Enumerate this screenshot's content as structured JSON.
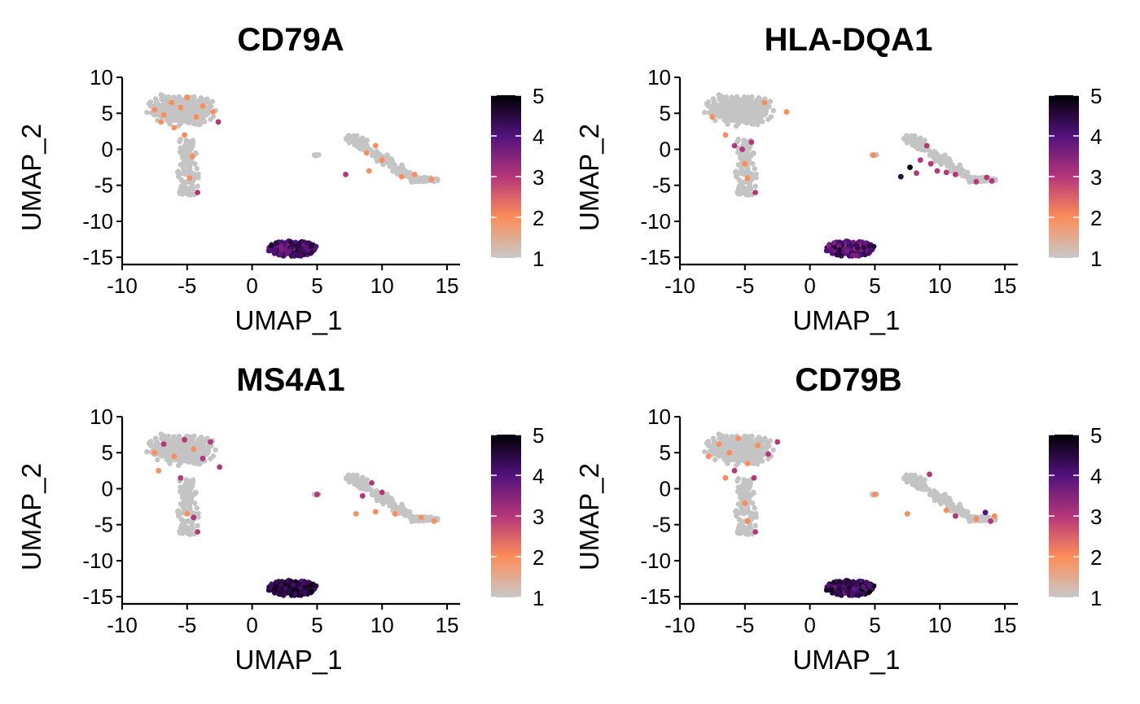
{
  "chart_data": [
    {
      "type": "scatter",
      "title": "CD79A",
      "xlabel": "UMAP_1",
      "ylabel": "UMAP_2",
      "xlim": [
        -10,
        16
      ],
      "ylim": [
        -16,
        10
      ],
      "xticks": [
        -10,
        -5,
        0,
        5,
        10,
        15
      ],
      "yticks": [
        10,
        5,
        0,
        -5,
        -10,
        -15
      ],
      "colorbar": {
        "min": 1,
        "max": 5,
        "ticks": [
          5,
          4,
          3,
          2,
          1
        ]
      },
      "highlights": [
        {
          "x": -7.5,
          "y": 5.5,
          "v": 2
        },
        {
          "x": -6.8,
          "y": 4.8,
          "v": 2
        },
        {
          "x": -6.2,
          "y": 6.5,
          "v": 2
        },
        {
          "x": -5.5,
          "y": 5.8,
          "v": 2
        },
        {
          "x": -5.0,
          "y": 7.2,
          "v": 2
        },
        {
          "x": -4.3,
          "y": 4.5,
          "v": 2
        },
        {
          "x": -3.8,
          "y": 6.0,
          "v": 2
        },
        {
          "x": -3.0,
          "y": 5.2,
          "v": 2
        },
        {
          "x": -2.6,
          "y": 3.8,
          "v": 3
        },
        {
          "x": -6.0,
          "y": 3.0,
          "v": 2
        },
        {
          "x": -5.2,
          "y": 2.0,
          "v": 2
        },
        {
          "x": -4.6,
          "y": -1.0,
          "v": 2
        },
        {
          "x": -4.8,
          "y": -4.0,
          "v": 2
        },
        {
          "x": -4.2,
          "y": -6.0,
          "v": 3
        },
        {
          "x": -7.0,
          "y": 3.8,
          "v": 2
        },
        {
          "x": 8.8,
          "y": -0.5,
          "v": 2
        },
        {
          "x": 9.5,
          "y": 0.5,
          "v": 2
        },
        {
          "x": 10.0,
          "y": -1.5,
          "v": 2
        },
        {
          "x": 9.0,
          "y": -3.0,
          "v": 2
        },
        {
          "x": 7.2,
          "y": -3.5,
          "v": 3
        },
        {
          "x": 11.5,
          "y": -3.8,
          "v": 2
        },
        {
          "x": 13.8,
          "y": -4.2,
          "v": 2
        },
        {
          "x": 12.5,
          "y": -3.5,
          "v": 2
        }
      ],
      "cluster_b_mean": 4.2
    },
    {
      "type": "scatter",
      "title": "HLA-DQA1",
      "xlabel": "UMAP_1",
      "ylabel": "UMAP_2",
      "xlim": [
        -10,
        16
      ],
      "ylim": [
        -16,
        10
      ],
      "xticks": [
        -10,
        -5,
        0,
        5,
        10,
        15
      ],
      "yticks": [
        10,
        5,
        0,
        -5,
        -10,
        -15
      ],
      "colorbar": {
        "min": 1,
        "max": 5,
        "ticks": [
          5,
          4,
          3,
          2,
          1
        ]
      },
      "highlights": [
        {
          "x": -7.5,
          "y": 4.5,
          "v": 2
        },
        {
          "x": -6.5,
          "y": 2.0,
          "v": 2
        },
        {
          "x": -5.8,
          "y": 0.5,
          "v": 3
        },
        {
          "x": -5.2,
          "y": 0.0,
          "v": 3
        },
        {
          "x": -4.5,
          "y": 1.0,
          "v": 3
        },
        {
          "x": -5.0,
          "y": -2.0,
          "v": 2
        },
        {
          "x": -4.8,
          "y": -4.0,
          "v": 2
        },
        {
          "x": -4.2,
          "y": -6.0,
          "v": 3
        },
        {
          "x": -3.5,
          "y": 6.5,
          "v": 2
        },
        {
          "x": -1.8,
          "y": 5.2,
          "v": 2
        },
        {
          "x": 4.9,
          "y": -0.8,
          "v": 2
        },
        {
          "x": 7.0,
          "y": -3.8,
          "v": 4.5
        },
        {
          "x": 7.7,
          "y": -2.5,
          "v": 5
        },
        {
          "x": 8.5,
          "y": -1.5,
          "v": 3
        },
        {
          "x": 9.3,
          "y": -2.0,
          "v": 3
        },
        {
          "x": 9.8,
          "y": -3.0,
          "v": 3
        },
        {
          "x": 10.5,
          "y": -3.2,
          "v": 3
        },
        {
          "x": 11.2,
          "y": -3.5,
          "v": 3
        },
        {
          "x": 9.0,
          "y": 0.5,
          "v": 3
        },
        {
          "x": 12.8,
          "y": -4.5,
          "v": 3
        },
        {
          "x": 13.6,
          "y": -3.9,
          "v": 3
        },
        {
          "x": 14.0,
          "y": -4.4,
          "v": 3
        },
        {
          "x": 8.2,
          "y": -3.3,
          "v": 3
        }
      ],
      "cluster_b_mean": 4.0
    },
    {
      "type": "scatter",
      "title": "MS4A1",
      "xlabel": "UMAP_1",
      "ylabel": "UMAP_2",
      "xlim": [
        -10,
        16
      ],
      "ylim": [
        -16,
        10
      ],
      "xticks": [
        -10,
        -5,
        0,
        5,
        10,
        15
      ],
      "yticks": [
        10,
        5,
        0,
        -5,
        -10,
        -15
      ],
      "colorbar": {
        "min": 1,
        "max": 5,
        "ticks": [
          5,
          4,
          3,
          2,
          1
        ]
      },
      "highlights": [
        {
          "x": -7.5,
          "y": 5.0,
          "v": 2
        },
        {
          "x": -6.8,
          "y": 6.2,
          "v": 3
        },
        {
          "x": -6.0,
          "y": 4.5,
          "v": 2
        },
        {
          "x": -5.2,
          "y": 6.8,
          "v": 3
        },
        {
          "x": -4.5,
          "y": 5.5,
          "v": 2
        },
        {
          "x": -3.8,
          "y": 4.2,
          "v": 3
        },
        {
          "x": -3.2,
          "y": 6.5,
          "v": 3
        },
        {
          "x": -2.5,
          "y": 3.0,
          "v": 3
        },
        {
          "x": -7.2,
          "y": 2.5,
          "v": 2
        },
        {
          "x": -5.5,
          "y": 1.5,
          "v": 3
        },
        {
          "x": -5.0,
          "y": -3.5,
          "v": 2
        },
        {
          "x": -4.5,
          "y": -4.0,
          "v": 3
        },
        {
          "x": -4.2,
          "y": -6.0,
          "v": 3
        },
        {
          "x": 5.0,
          "y": -0.8,
          "v": 3
        },
        {
          "x": 8.5,
          "y": -1.0,
          "v": 3
        },
        {
          "x": 9.2,
          "y": 0.8,
          "v": 3
        },
        {
          "x": 10.0,
          "y": -0.5,
          "v": 3
        },
        {
          "x": 8.0,
          "y": -3.5,
          "v": 2
        },
        {
          "x": 9.5,
          "y": -3.2,
          "v": 2
        },
        {
          "x": 11.0,
          "y": -3.5,
          "v": 2
        },
        {
          "x": 13.0,
          "y": -4.0,
          "v": 2
        },
        {
          "x": 14.0,
          "y": -4.5,
          "v": 2
        }
      ],
      "cluster_b_mean": 4.5
    },
    {
      "type": "scatter",
      "title": "CD79B",
      "xlabel": "UMAP_1",
      "ylabel": "UMAP_2",
      "xlim": [
        -10,
        16
      ],
      "ylim": [
        -16,
        10
      ],
      "xticks": [
        -10,
        -5,
        0,
        5,
        10,
        15
      ],
      "yticks": [
        10,
        5,
        0,
        -5,
        -10,
        -15
      ],
      "colorbar": {
        "min": 1,
        "max": 5,
        "ticks": [
          5,
          4,
          3,
          2,
          1
        ]
      },
      "highlights": [
        {
          "x": -7.8,
          "y": 4.5,
          "v": 2
        },
        {
          "x": -7.0,
          "y": 6.2,
          "v": 2
        },
        {
          "x": -6.2,
          "y": 5.0,
          "v": 2
        },
        {
          "x": -5.5,
          "y": 7.0,
          "v": 2
        },
        {
          "x": -4.8,
          "y": 3.5,
          "v": 2
        },
        {
          "x": -4.0,
          "y": 6.0,
          "v": 2
        },
        {
          "x": -3.2,
          "y": 4.8,
          "v": 3
        },
        {
          "x": -2.5,
          "y": 6.5,
          "v": 3
        },
        {
          "x": -6.5,
          "y": 1.5,
          "v": 2
        },
        {
          "x": -5.8,
          "y": 2.5,
          "v": 3
        },
        {
          "x": -4.3,
          "y": 1.5,
          "v": 3
        },
        {
          "x": -5.0,
          "y": -2.0,
          "v": 2
        },
        {
          "x": -4.8,
          "y": -4.5,
          "v": 2
        },
        {
          "x": -4.2,
          "y": -6.0,
          "v": 3
        },
        {
          "x": 5.0,
          "y": -0.8,
          "v": 2
        },
        {
          "x": 7.5,
          "y": -3.5,
          "v": 2
        },
        {
          "x": 9.2,
          "y": 2.0,
          "v": 3
        },
        {
          "x": 10.5,
          "y": -3.0,
          "v": 2
        },
        {
          "x": 11.2,
          "y": -3.8,
          "v": 3
        },
        {
          "x": 12.8,
          "y": -4.2,
          "v": 2
        },
        {
          "x": 13.5,
          "y": -3.3,
          "v": 4
        },
        {
          "x": 13.9,
          "y": -4.5,
          "v": 3
        },
        {
          "x": 14.2,
          "y": -3.8,
          "v": 2
        }
      ],
      "cluster_b_mean": 4.3
    }
  ]
}
